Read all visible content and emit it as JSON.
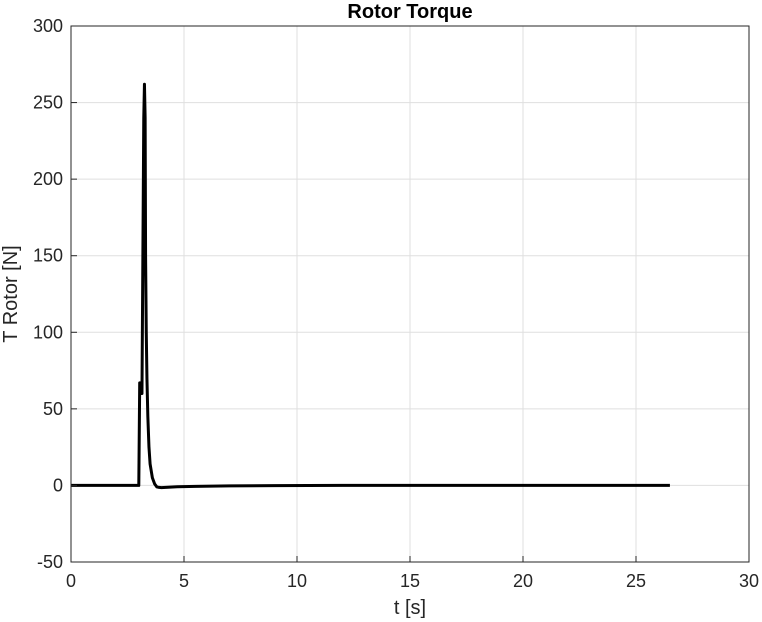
{
  "chart_data": {
    "type": "line",
    "title": "Rotor Torque",
    "xlabel": "t [s]",
    "ylabel": "T Rotor [N]",
    "xlim": [
      0,
      30
    ],
    "ylim": [
      -50,
      300
    ],
    "xticks": [
      0,
      5,
      10,
      15,
      20,
      25,
      30
    ],
    "yticks": [
      -50,
      0,
      50,
      100,
      150,
      200,
      250,
      300
    ],
    "grid": true,
    "box": true,
    "series": [
      {
        "color": "#000000",
        "x": [
          0,
          2.95,
          3.0,
          3.04,
          3.08,
          3.1,
          3.14,
          3.18,
          3.22,
          3.25,
          3.28,
          3.3,
          3.33,
          3.36,
          3.4,
          3.45,
          3.5,
          3.6,
          3.7,
          3.8,
          3.9,
          4.0,
          4.3,
          4.7,
          5.5,
          7.0,
          9.0,
          12.0,
          26.5
        ],
        "y": [
          0,
          0,
          0,
          67,
          67,
          60,
          60,
          150,
          240,
          262,
          240,
          150,
          100,
          70,
          45,
          25,
          14,
          5,
          1,
          -1,
          -1.3,
          -1.4,
          -1.2,
          -0.9,
          -0.6,
          -0.3,
          -0.1,
          0,
          0
        ]
      }
    ]
  }
}
